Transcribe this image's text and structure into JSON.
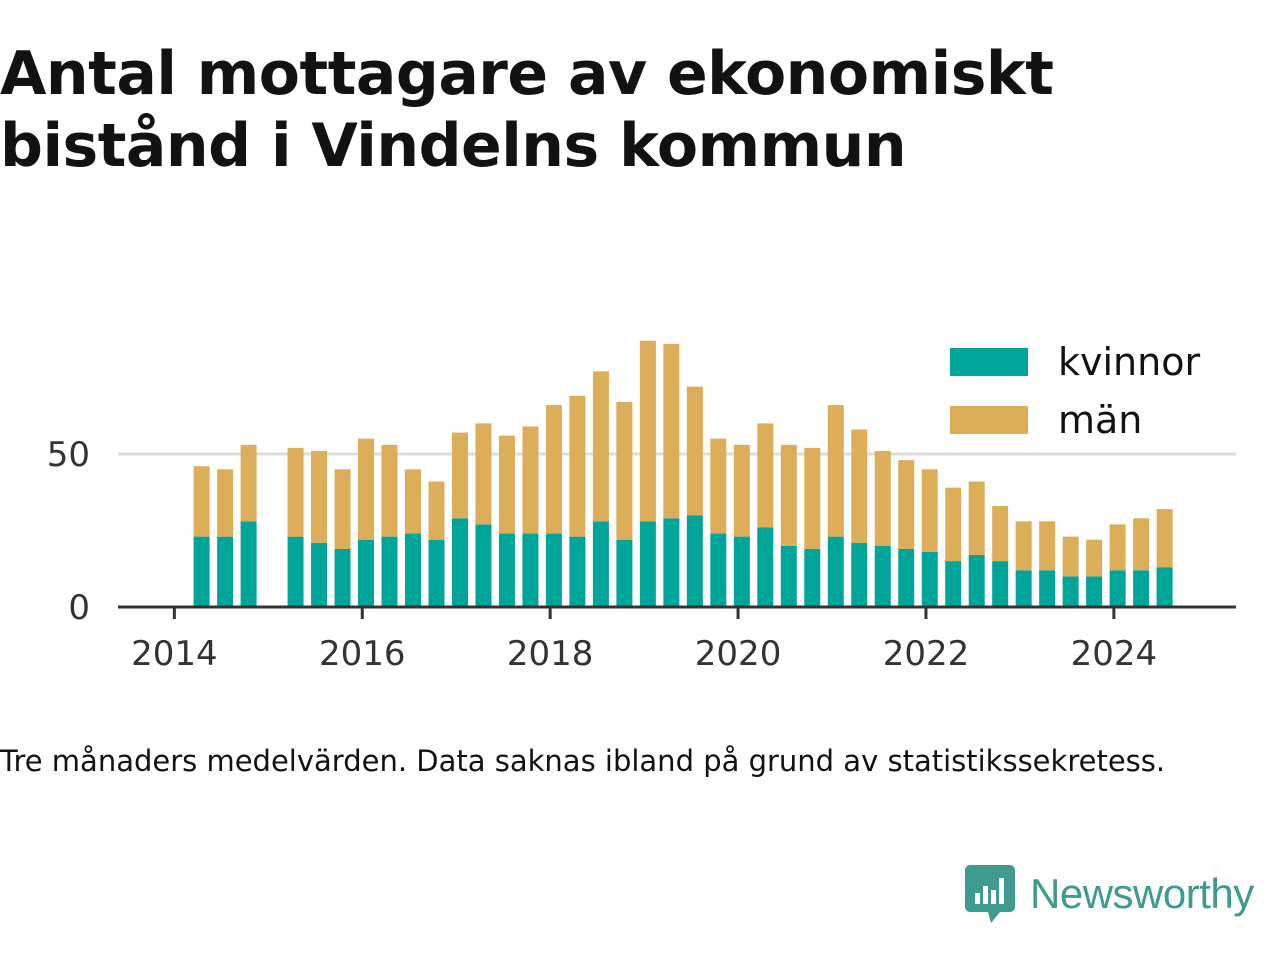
{
  "title": "Antal mottagare av ekonomiskt bistånd i Vindelns kommun",
  "caption": "Tre månaders medelvärden. Data saknas ibland på grund av statistikssekretess.",
  "brand": {
    "name": "Newsworthy",
    "icon": "newsworthy-logo-icon",
    "color": "#3f9a8f"
  },
  "colors": {
    "kvinnor": "#00a59a",
    "man": "#dcae5a",
    "axis": "#333333",
    "grid": "#dddddd"
  },
  "chart_data": {
    "type": "bar",
    "stacked": true,
    "title": "Antal mottagare av ekonomiskt bistånd i Vindelns kommun",
    "xlabel": "",
    "ylabel": "",
    "x_tick_labels": [
      "2014",
      "2016",
      "2018",
      "2020",
      "2022",
      "2024"
    ],
    "x_ticks": [
      2014.0,
      2016.0,
      2018.0,
      2020.0,
      2022.0,
      2024.0
    ],
    "y_ticks": [
      0,
      50
    ],
    "y_tick_labels": [
      "0",
      "50"
    ],
    "xlim": [
      2013.4,
      2025.3
    ],
    "ylim": [
      0,
      100
    ],
    "legend_position": "top-right",
    "grid": "horizontal",
    "x": [
      2014.29,
      2014.54,
      2014.79,
      2015.29,
      2015.54,
      2015.79,
      2016.04,
      2016.29,
      2016.54,
      2016.79,
      2017.04,
      2017.29,
      2017.54,
      2017.79,
      2018.04,
      2018.29,
      2018.54,
      2018.79,
      2019.04,
      2019.29,
      2019.54,
      2019.79,
      2020.04,
      2020.29,
      2020.54,
      2020.79,
      2021.04,
      2021.29,
      2021.54,
      2021.79,
      2022.04,
      2022.29,
      2022.54,
      2022.79,
      2023.04,
      2023.29,
      2023.54,
      2023.79,
      2024.04,
      2024.29,
      2024.54
    ],
    "series": [
      {
        "name": "kvinnor",
        "color": "#00a59a",
        "values": [
          23,
          23,
          28,
          23,
          21,
          19,
          22,
          23,
          24,
          22,
          29,
          27,
          24,
          24,
          24,
          23,
          28,
          22,
          28,
          29,
          30,
          24,
          23,
          26,
          20,
          19,
          23,
          21,
          20,
          19,
          18,
          15,
          17,
          15,
          12,
          12,
          10,
          10,
          12,
          12,
          13
        ]
      },
      {
        "name": "män",
        "color": "#dcae5a",
        "values": [
          23,
          22,
          25,
          29,
          30,
          26,
          33,
          30,
          21,
          19,
          28,
          33,
          32,
          35,
          42,
          46,
          49,
          45,
          59,
          57,
          42,
          31,
          30,
          34,
          33,
          33,
          43,
          37,
          31,
          29,
          27,
          24,
          24,
          18,
          16,
          16,
          13,
          12,
          15,
          17,
          19
        ]
      }
    ]
  }
}
